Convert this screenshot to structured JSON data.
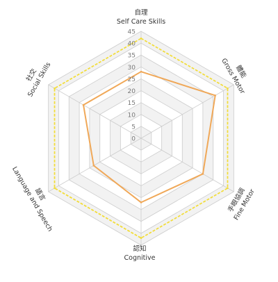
{
  "chart_data": {
    "type": "radar",
    "axes": [
      {
        "label_zh": "自理",
        "label_en": "Self Care Skills"
      },
      {
        "label_zh": "體能",
        "label_en": "Gross Motor"
      },
      {
        "label_zh": "手眼協調",
        "label_en": "Fine Motor"
      },
      {
        "label_zh": "認知",
        "label_en": "Cognitive"
      },
      {
        "label_zh": "語言",
        "label_en": "Language and Speech"
      },
      {
        "label_zh": "社交",
        "label_en": "Social Skills"
      }
    ],
    "r_range": [
      0,
      45
    ],
    "r_ticks": [
      "0",
      "5",
      "10",
      "15",
      "20",
      "25",
      "30",
      "35",
      "40",
      "45"
    ],
    "series": [
      {
        "values": [
          28,
          36,
          30,
          27,
          23,
          28
        ],
        "color": "#F0A858",
        "style": "solid"
      },
      {
        "values": [
          42,
          42,
          42,
          42,
          42,
          42
        ],
        "color": "#F2DD3A",
        "style": "dashed"
      }
    ],
    "grid": true,
    "grid_fill": "#F2F2F2",
    "grid_line": "#CCCCCC"
  }
}
